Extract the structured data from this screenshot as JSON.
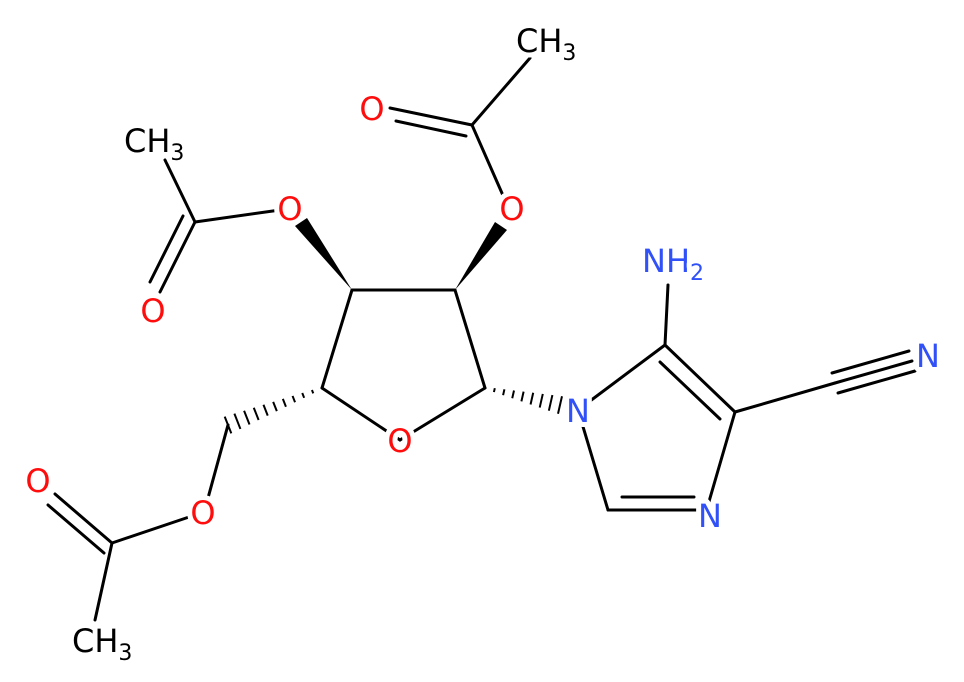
{
  "atoms": [
    {
      "text": "CH",
      "sub": "3"
    },
    {
      "text": "O"
    },
    {
      "text": "O"
    },
    {
      "text": "CH",
      "sub": "3"
    },
    {
      "text": "O"
    },
    {
      "text": "O"
    },
    {
      "text": "NH",
      "sub": "2"
    },
    {
      "text": "N"
    },
    {
      "text": "N"
    },
    {
      "text": "O"
    },
    {
      "text": "N"
    },
    {
      "text": "O"
    },
    {
      "text": "O"
    },
    {
      "text": "CH",
      "sub": "3"
    }
  ]
}
